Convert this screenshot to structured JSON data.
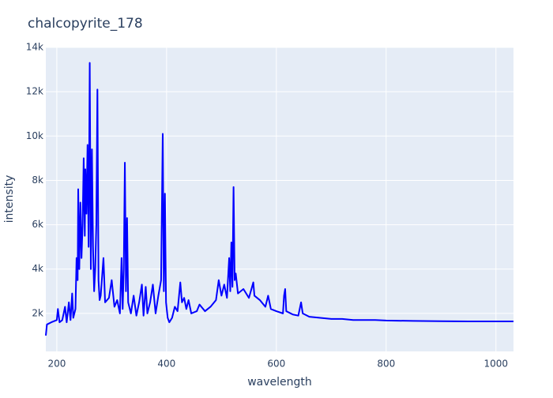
{
  "chart_data": {
    "type": "line",
    "title": "chalcopyrite_178",
    "x_label": "wavelength",
    "y_label": "intensity",
    "xlim": [
      180,
      1032
    ],
    "ylim": [
      286,
      14000
    ],
    "xticks": [
      200,
      400,
      600,
      800,
      1000
    ],
    "yticks": [
      {
        "value": 2000,
        "label": "2k"
      },
      {
        "value": 4000,
        "label": "4k"
      },
      {
        "value": 6000,
        "label": "6k"
      },
      {
        "value": 8000,
        "label": "8k"
      },
      {
        "value": 10000,
        "label": "10k"
      },
      {
        "value": 12000,
        "label": "12k"
      },
      {
        "value": 14000,
        "label": "14k"
      }
    ],
    "grid": true,
    "series": [
      {
        "color": "#0000ff",
        "x": [
          180,
          182,
          190,
          200,
          202,
          205,
          210,
          215,
          218,
          222,
          225,
          228,
          230,
          234,
          236,
          238,
          239,
          241,
          243,
          245,
          247,
          249,
          251,
          252,
          254,
          256,
          258,
          260,
          262,
          264,
          266,
          268,
          270,
          272,
          274,
          276,
          278,
          280,
          285,
          288,
          295,
          300,
          305,
          310,
          315,
          318,
          320,
          322,
          324,
          326,
          328,
          330,
          335,
          340,
          345,
          350,
          355,
          358,
          362,
          365,
          370,
          375,
          380,
          385,
          390,
          393,
          395,
          397,
          399,
          402,
          405,
          410,
          415,
          420,
          425,
          428,
          432,
          436,
          440,
          445,
          455,
          460,
          470,
          480,
          490,
          495,
          500,
          505,
          510,
          514,
          516,
          518,
          520,
          522,
          524,
          526,
          530,
          540,
          550,
          558,
          560,
          570,
          580,
          585,
          590,
          600,
          612,
          614,
          616,
          618,
          630,
          640,
          645,
          648,
          660,
          680,
          700,
          720,
          740,
          760,
          780,
          800,
          850,
          900,
          950,
          1000,
          1032
        ],
        "values": [
          1000,
          1500,
          1600,
          1700,
          2200,
          1600,
          1700,
          2300,
          1600,
          2500,
          1700,
          2900,
          1800,
          2200,
          4500,
          3500,
          7600,
          4000,
          7000,
          4500,
          6000,
          9000,
          5500,
          8500,
          6500,
          9600,
          5000,
          13300,
          4000,
          9400,
          5000,
          3000,
          4000,
          6000,
          12100,
          3500,
          2600,
          2800,
          4500,
          2500,
          2700,
          3500,
          2300,
          2600,
          2000,
          4500,
          2200,
          4000,
          8800,
          3000,
          6300,
          2500,
          2000,
          2800,
          1900,
          2500,
          3300,
          1900,
          3200,
          2000,
          2500,
          3300,
          2000,
          2800,
          3500,
          10100,
          3000,
          7400,
          2500,
          1800,
          1600,
          1800,
          2300,
          2100,
          3400,
          2500,
          2700,
          2200,
          2600,
          2000,
          2100,
          2400,
          2100,
          2300,
          2600,
          3500,
          2800,
          3300,
          2700,
          4500,
          3000,
          5200,
          3200,
          7700,
          3500,
          3800,
          2900,
          3100,
          2700,
          3400,
          2800,
          2600,
          2300,
          2800,
          2200,
          2100,
          2000,
          2800,
          3100,
          2100,
          1950,
          1900,
          2500,
          2000,
          1850,
          1800,
          1750,
          1750,
          1700,
          1700,
          1700,
          1680,
          1660,
          1650,
          1640,
          1640,
          1640
        ]
      }
    ]
  }
}
